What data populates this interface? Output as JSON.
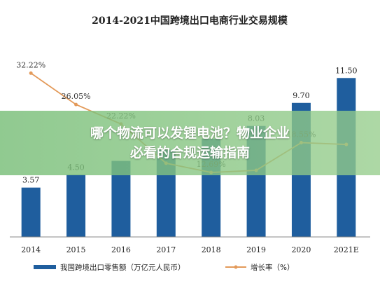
{
  "chart_data": {
    "type": "bar",
    "title": "2014-2021中国跨境出口电商行业交易规模",
    "categories": [
      "2014",
      "2015",
      "2016",
      "2017",
      "2018",
      "2019",
      "2020",
      "2021E"
    ],
    "series": [
      {
        "name": "我国跨境出口零售额（万亿元人民币）",
        "type": "bar",
        "values": [
          3.57,
          4.5,
          5.5,
          6.3,
          7.1,
          8.03,
          9.7,
          11.5
        ],
        "labels": [
          "3.57",
          "4.50",
          "",
          "",
          "",
          "8.03",
          "9.70",
          "11.50"
        ],
        "color": "#1f5e9e"
      },
      {
        "name": "增长率（%）",
        "type": "line",
        "values": [
          32.22,
          26.05,
          22.22,
          14.5,
          12.69,
          13.1,
          18.55,
          18.2
        ],
        "labels": [
          "32.22%",
          "26.05%",
          "22.22%",
          "",
          "12.69%",
          "",
          "18.55%",
          ""
        ],
        "color": "#e39a5a"
      }
    ],
    "ylim_bar": [
      0,
      14
    ],
    "ylim_line": [
      0,
      40
    ],
    "grid": false,
    "legend": "bottom"
  },
  "overlay": {
    "line1": "哪个物流可以发锂电池？物业企业",
    "line2": "必看的合规运输指南"
  }
}
